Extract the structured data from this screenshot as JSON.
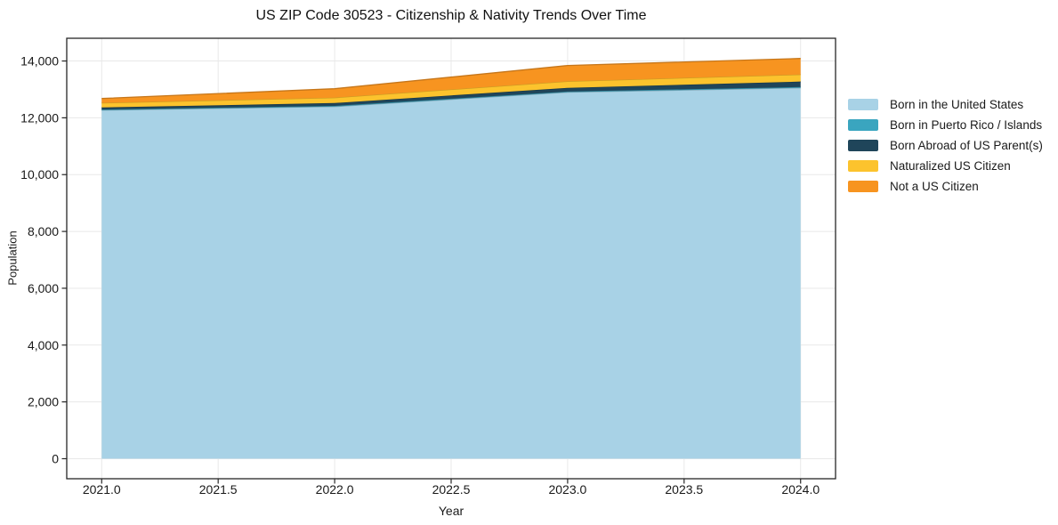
{
  "figure": {
    "title": "US ZIP Code 30523 - Citizenship & Nativity Trends Over Time"
  },
  "chart_data": {
    "type": "area",
    "stacked": true,
    "title": "US ZIP Code 30523 - Citizenship & Nativity Trends Over Time",
    "xlabel": "Year",
    "ylabel": "Population",
    "x": [
      2021,
      2022,
      2023,
      2024
    ],
    "series": [
      {
        "name": "Born in the United States",
        "color": "#a8d2e6",
        "values": [
          12270,
          12395,
          12900,
          13055
        ]
      },
      {
        "name": "Born in Puerto Rico / Islands",
        "color": "#3aa5bf",
        "values": [
          20,
          25,
          25,
          30
        ]
      },
      {
        "name": "Born Abroad of US Parent(s)",
        "color": "#1f455a",
        "values": [
          75,
          100,
          130,
          190
        ]
      },
      {
        "name": "Naturalized US Citizen",
        "color": "#fcc32d",
        "values": [
          160,
          190,
          230,
          250
        ]
      },
      {
        "name": "Not a US Citizen",
        "color": "#f79420",
        "values": [
          155,
          315,
          555,
          565
        ]
      }
    ],
    "totals": [
      12680,
      13025,
      13840,
      14090
    ],
    "xlim": [
      2020.85,
      2024.15
    ],
    "ylim": [
      -705,
      14800
    ],
    "xticks": {
      "values": [
        2021.0,
        2021.5,
        2022.0,
        2022.5,
        2023.0,
        2023.5,
        2024.0
      ],
      "labels": [
        "2021.0",
        "2021.5",
        "2022.0",
        "2022.5",
        "2023.0",
        "2023.5",
        "2024.0"
      ]
    },
    "yticks": {
      "values": [
        0,
        2000,
        4000,
        6000,
        8000,
        10000,
        12000,
        14000
      ],
      "labels": [
        "0",
        "2,000",
        "4,000",
        "6,000",
        "8,000",
        "10,000",
        "12,000",
        "14,000"
      ]
    },
    "grid": true,
    "legend_position": "right-outside"
  },
  "style": {
    "background": "#ffffff",
    "grid_color": "#e8e8e8",
    "spine_color": "#262626",
    "tick_color": "#262626",
    "text_color": "#191919",
    "title_color": "#111111"
  }
}
